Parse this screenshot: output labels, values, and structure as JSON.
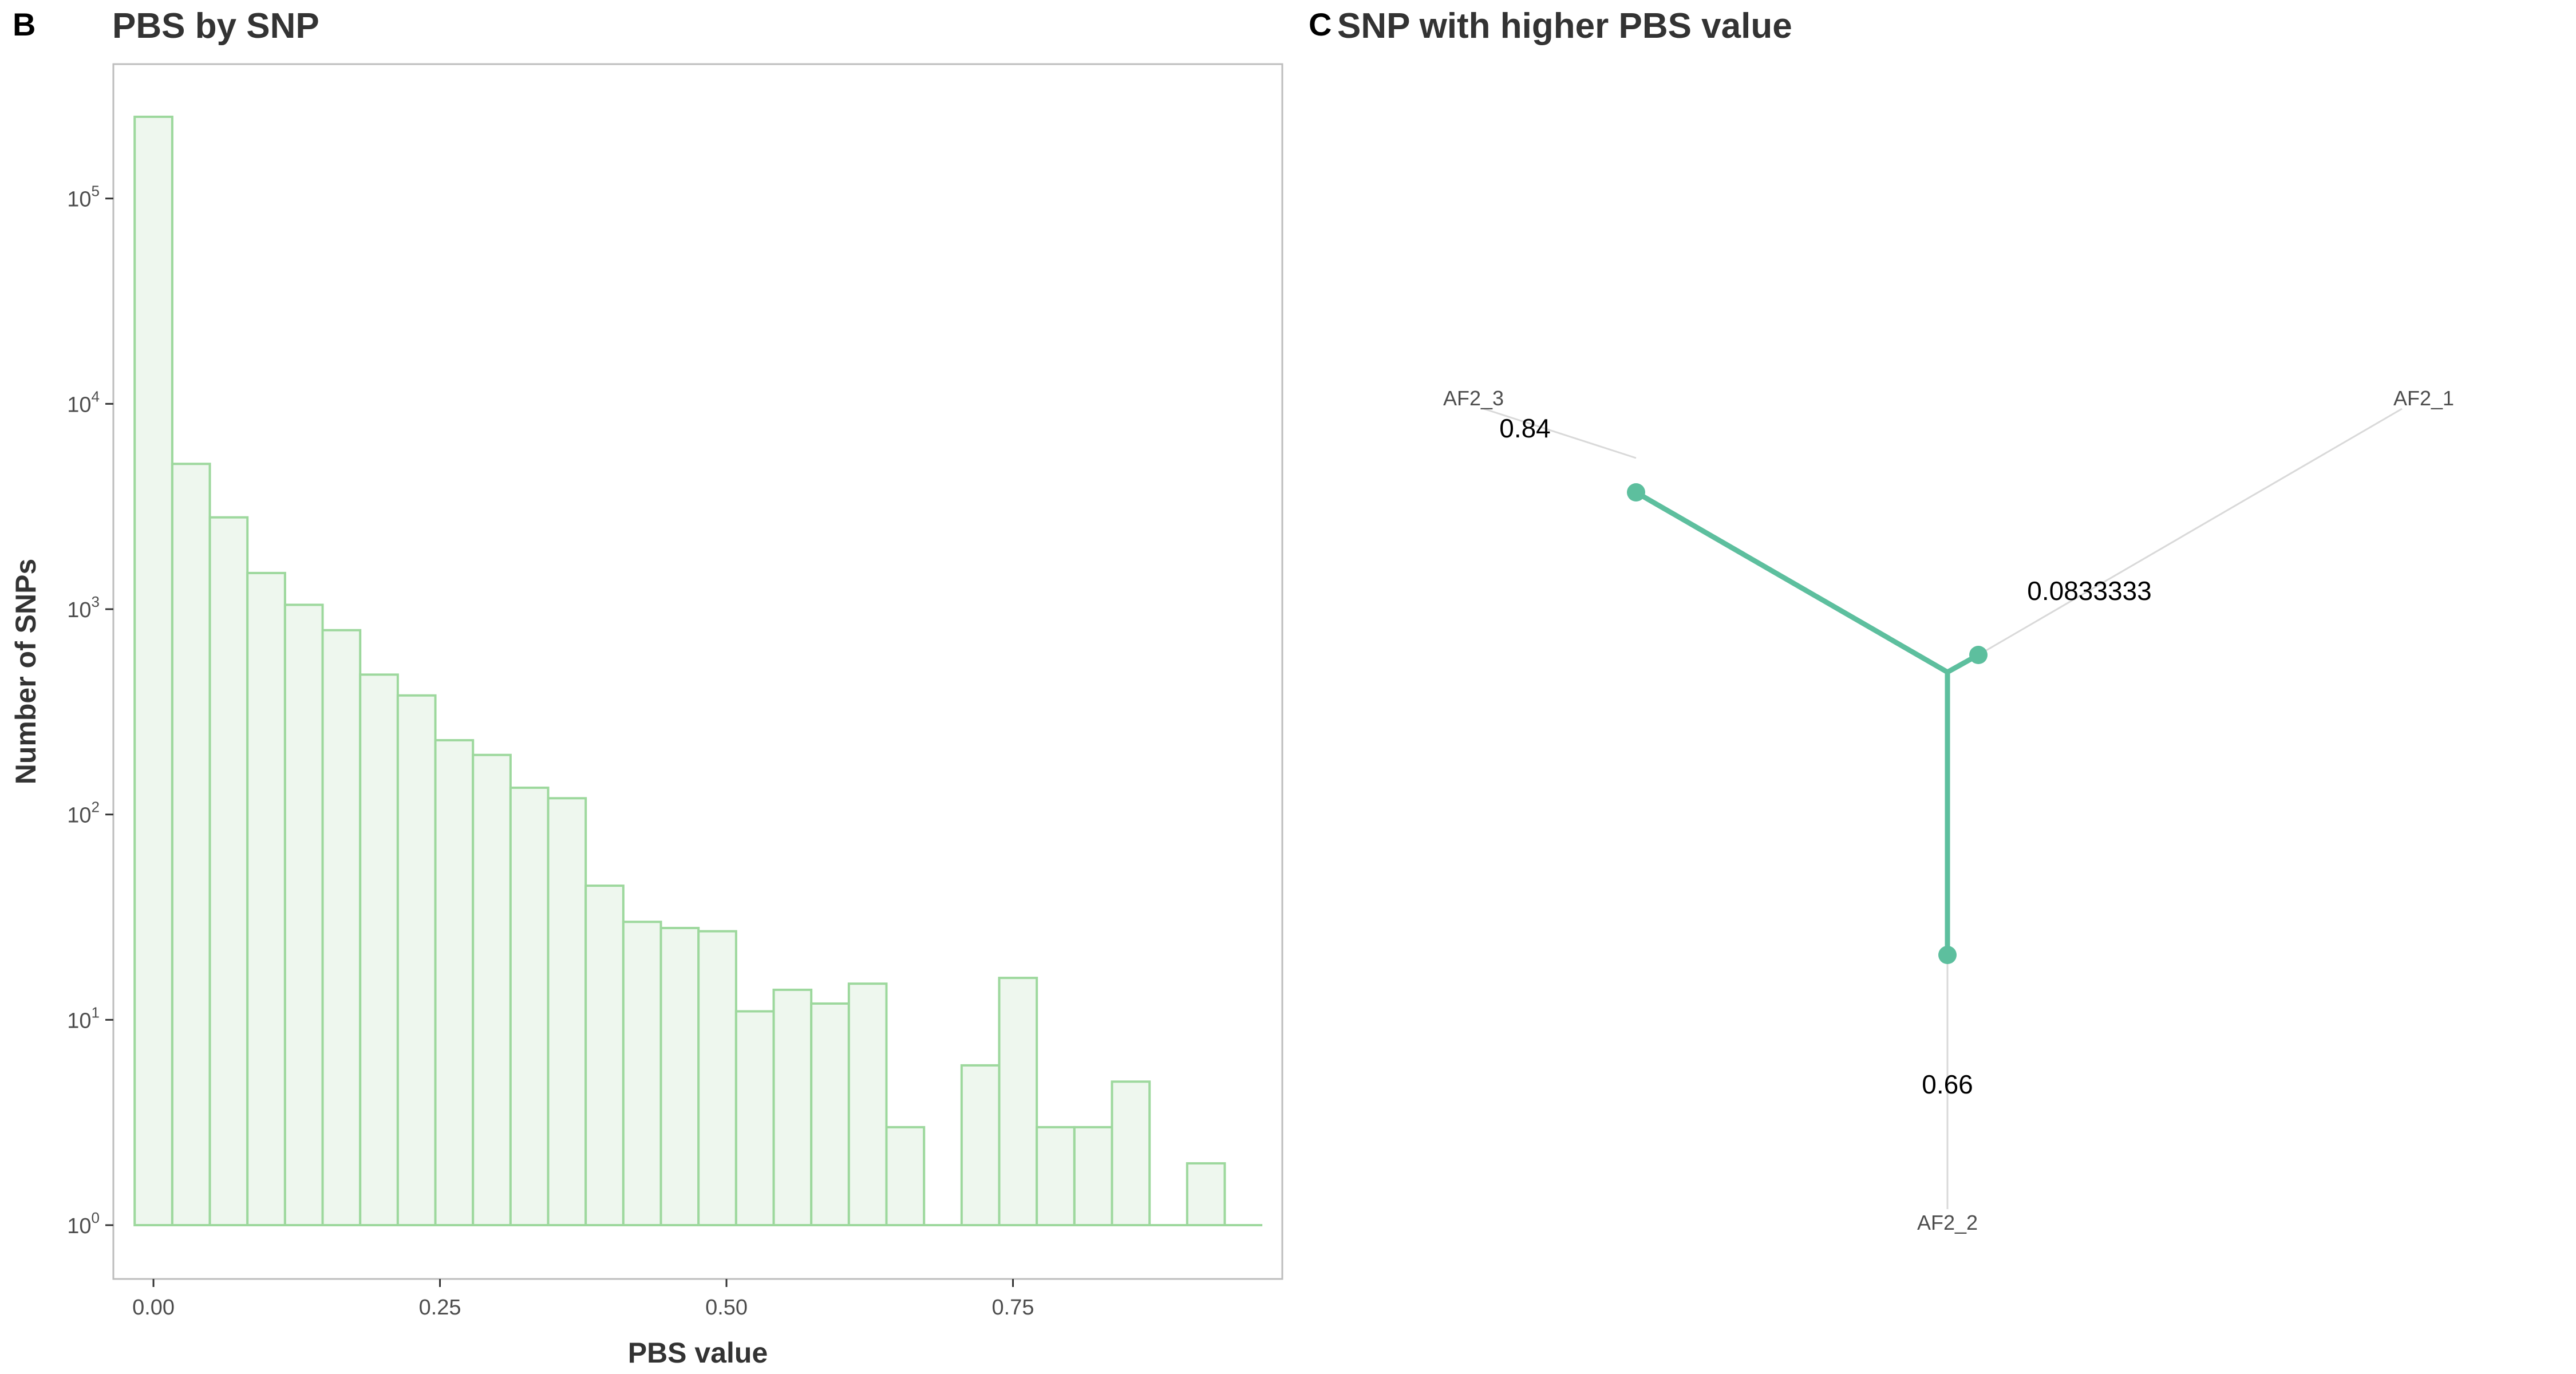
{
  "panel_b": {
    "letter": "B",
    "title": "PBS by SNP",
    "xlabel": "PBS value",
    "ylabel": "Number of SNPs"
  },
  "panel_c": {
    "letter": "C",
    "title": "SNP with higher PBS value"
  },
  "colors": {
    "bar_fill": "#eef7ee",
    "bar_stroke": "#9dd89d",
    "tree_branch": "#5dbf9e",
    "tree_guide": "#d9d9d9",
    "panel_border": "#bdbdbd"
  },
  "chart_data": [
    {
      "type": "bar",
      "title": "PBS by SNP",
      "xlabel": "PBS value",
      "ylabel": "Number of SNPs",
      "y_scale": "log10",
      "xlim": [
        -0.035,
        0.985
      ],
      "ylim": [
        1,
        400000
      ],
      "x_ticks": [
        {
          "value": 0.0,
          "label": "0.00"
        },
        {
          "value": 0.25,
          "label": "0.25"
        },
        {
          "value": 0.5,
          "label": "0.50"
        },
        {
          "value": 0.75,
          "label": "0.75"
        }
      ],
      "y_ticks": [
        {
          "value": 1,
          "base": "10",
          "exp": "0"
        },
        {
          "value": 10,
          "base": "10",
          "exp": "1"
        },
        {
          "value": 100,
          "base": "10",
          "exp": "2"
        },
        {
          "value": 1000,
          "base": "10",
          "exp": "3"
        },
        {
          "value": 10000,
          "base": "10",
          "exp": "4"
        },
        {
          "value": 100000,
          "base": "10",
          "exp": "5"
        }
      ],
      "bin_width": 0.0328,
      "bins_start": -0.0164,
      "values": [
        250000,
        5100,
        2800,
        1500,
        1050,
        790,
        480,
        380,
        230,
        195,
        135,
        120,
        45,
        30,
        28,
        27,
        11,
        14,
        12,
        15,
        3,
        1,
        6,
        16,
        3,
        3,
        5,
        1,
        2,
        1
      ],
      "grid": false,
      "legend": "none"
    },
    {
      "type": "diagram",
      "title": "SNP with higher PBS value",
      "layout": "unrooted tree",
      "nodes": [
        {
          "id": "AF2_1",
          "label": "AF2_1"
        },
        {
          "id": "AF2_2",
          "label": "AF2_2"
        },
        {
          "id": "AF2_3",
          "label": "AF2_3"
        }
      ],
      "branches": [
        {
          "to": "AF2_3",
          "label": "0.84"
        },
        {
          "to": "AF2_1",
          "label": "0.0833333"
        },
        {
          "to": "AF2_2",
          "label": "0.66"
        }
      ]
    }
  ]
}
